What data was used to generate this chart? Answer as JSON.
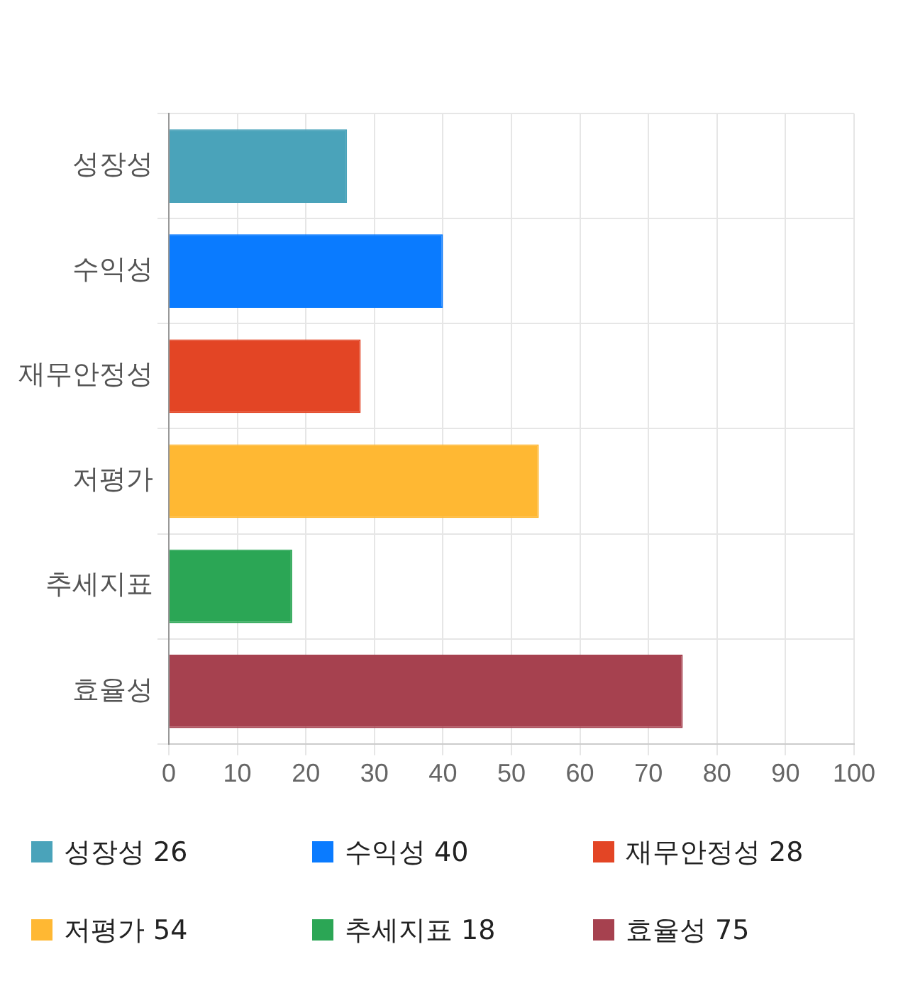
{
  "chart_data": {
    "type": "bar",
    "orientation": "horizontal",
    "categories": [
      "성장성",
      "수익성",
      "재무안정성",
      "저평가",
      "추세지표",
      "효율성"
    ],
    "values": [
      26,
      40,
      28,
      54,
      18,
      75
    ],
    "value_labels": [
      "26",
      "40",
      "28",
      "54",
      "18",
      "75"
    ],
    "colors": [
      "#4aa3ba",
      "#0a7bff",
      "#e34525",
      "#ffb833",
      "#2ba655",
      "#a6414f"
    ],
    "xlim": [
      0,
      100
    ],
    "xticks": [
      0,
      10,
      20,
      30,
      40,
      50,
      60,
      70,
      80,
      90,
      100
    ],
    "grid": true
  }
}
